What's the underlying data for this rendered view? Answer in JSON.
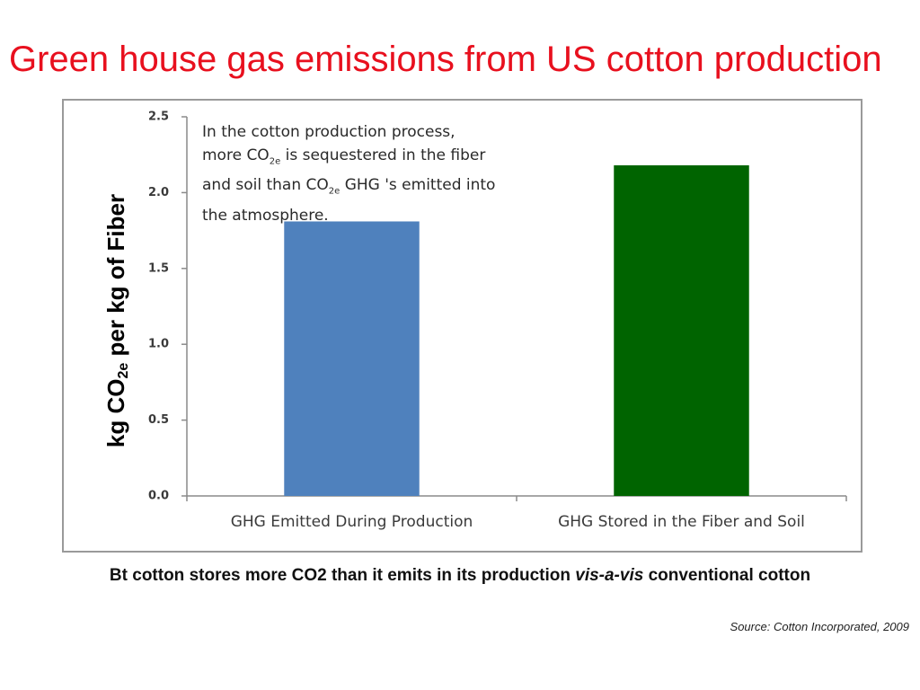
{
  "slide": {
    "title": "Green house gas emissions from US cotton production",
    "caption_part1": "Bt cotton stores more CO2 than it emits in its production ",
    "caption_italic": "vis-a-vis",
    "caption_part2": " conventional cotton",
    "source": "Source: Cotton Incorporated, 2009"
  },
  "chart_data": {
    "type": "bar",
    "categories": [
      "GHG Emitted During Production",
      "GHG Stored in the Fiber and Soil"
    ],
    "values": [
      1.81,
      2.18
    ],
    "colors": [
      "#4f81bd",
      "#006400"
    ],
    "ylim": [
      0,
      2.5
    ],
    "yticks": [
      "0.0",
      "0.5",
      "1.0",
      "1.5",
      "2.0",
      "2.5"
    ],
    "ylabel_main": "kg CO",
    "ylabel_sub": "2e",
    "ylabel_rest": " per kg of Fiber",
    "xlabel": "",
    "annotation": {
      "line1": "In the cotton production process,",
      "line2a": "more CO",
      "line2sub": "2e",
      "line2b": " is sequestered in the fiber",
      "line3a": "and soil than CO",
      "line3sub": "2e",
      "line3b": " GHG 's emitted  into",
      "line4": "the atmosphere."
    },
    "grid": false,
    "legend": "none"
  }
}
